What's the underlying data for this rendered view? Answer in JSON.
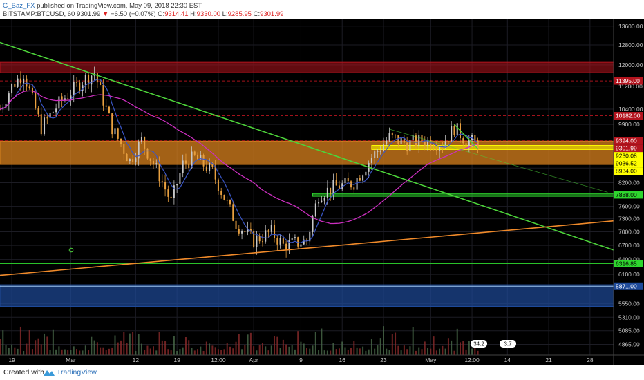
{
  "header": {
    "author": "G_Baz_FX",
    "published": " published on TradingView.com, May 09, 2018 22:30 EST",
    "symbol": "BITSTAMP:BTCUSD, 60",
    "last": "9301.99",
    "change_arrow": "▼",
    "change": "−6.50 (−0.07%)",
    "o_label": "O:",
    "o": "9314.41",
    "h_label": "H:",
    "h": "9330.00",
    "l_label": "L:",
    "l": "9285.95",
    "c_label": "C:",
    "c": "9301.99"
  },
  "footer": {
    "created_with": "Created with",
    "brand": "TradingView"
  },
  "colors": {
    "background": "#000000",
    "grid": "#1c1c24",
    "axis_text": "#c8c8c8",
    "candle_up": "#c9c9c9",
    "candle_down": "#e8a040",
    "ma_fast": "#3a56c6",
    "ma_slow": "#cc2fc0",
    "trend_green": "#4dd43a",
    "trend_orange": "#f08a2a",
    "zone_red": "#b4141e",
    "zone_orange": "#d9821e",
    "zone_yellow": "#ffff00",
    "zone_green": "#2ed62e",
    "zone_blue": "#1e4a9a"
  },
  "chart_data": {
    "type": "candlestick",
    "title": "",
    "y_scale": "log",
    "ylim": [
      4700,
      13900
    ],
    "y_ticks": [
      "13600.00",
      "12800.00",
      "12000.00",
      "11200.00",
      "10400.00",
      "9900.00",
      "8600.00",
      "8200.00",
      "7600.00",
      "7300.00",
      "7000.00",
      "6700.00",
      "6400.00",
      "6100.00",
      "5550.00",
      "5310.00",
      "5085.00",
      "4865.00"
    ],
    "x_ticks": [
      "19",
      "Mar",
      "12",
      "19",
      "12:00",
      "Apr",
      "9",
      "16",
      "23",
      "May",
      "12:00",
      "14",
      "21",
      "28"
    ],
    "price_path": [
      {
        "date": "Feb 17",
        "close": 10400
      },
      {
        "date": "Feb 19",
        "close": 11200
      },
      {
        "date": "Feb 21",
        "close": 11700
      },
      {
        "date": "Feb 24",
        "close": 9800
      },
      {
        "date": "Feb 27",
        "close": 10600
      },
      {
        "date": "Mar 03",
        "close": 11400
      },
      {
        "date": "Mar 05",
        "close": 11700
      },
      {
        "date": "Mar 08",
        "close": 9800
      },
      {
        "date": "Mar 11",
        "close": 8800
      },
      {
        "date": "Mar 13",
        "close": 9400
      },
      {
        "date": "Mar 16",
        "close": 8400
      },
      {
        "date": "Mar 18",
        "close": 7700
      },
      {
        "date": "Mar 20",
        "close": 8700
      },
      {
        "date": "Mar 22",
        "close": 8900
      },
      {
        "date": "Mar 25",
        "close": 8500
      },
      {
        "date": "Mar 29",
        "close": 7200
      },
      {
        "date": "Apr 01",
        "close": 6800
      },
      {
        "date": "Apr 04",
        "close": 7000
      },
      {
        "date": "Apr 06",
        "close": 6700
      },
      {
        "date": "Apr 10",
        "close": 6800
      },
      {
        "date": "Apr 12",
        "close": 7900
      },
      {
        "date": "Apr 15",
        "close": 8100
      },
      {
        "date": "Apr 18",
        "close": 8200
      },
      {
        "date": "Apr 21",
        "close": 8900
      },
      {
        "date": "Apr 24",
        "close": 9500
      },
      {
        "date": "Apr 27",
        "close": 9300
      },
      {
        "date": "Apr 30",
        "close": 9400
      },
      {
        "date": "May 03",
        "close": 9300
      },
      {
        "date": "May 05",
        "close": 9800
      },
      {
        "date": "May 07",
        "close": 9400
      },
      {
        "date": "May 09",
        "close": 9302
      }
    ],
    "price_labels": [
      {
        "label": "11395.00",
        "color": "#b4141e"
      },
      {
        "label": "10182.00",
        "color": "#b4141e"
      },
      {
        "label": "9394.00",
        "color": "#b4141e"
      },
      {
        "label": "9301.99",
        "color": "#b4141e"
      },
      {
        "label": "9230.08",
        "color": "#ffff00"
      },
      {
        "label": "9036.52",
        "color": "#ffff00"
      },
      {
        "label": "8934.00",
        "color": "#ffff00"
      },
      {
        "label": "7888.00",
        "color": "#2ed62e"
      },
      {
        "label": "6316.85",
        "color": "#2ed62e"
      },
      {
        "label": "5871.00",
        "color": "#1e4a9a"
      }
    ],
    "drawn_levels": [
      {
        "kind": "zone",
        "from": 11700,
        "to": 12100,
        "color": "#b4141e"
      },
      {
        "kind": "zone",
        "from": 8700,
        "to": 9380,
        "color": "#d9821e"
      },
      {
        "kind": "zone",
        "from": 9130,
        "to": 9250,
        "color": "#ffff00"
      },
      {
        "kind": "zone",
        "from": 7850,
        "to": 7920,
        "color": "#2ed62e"
      },
      {
        "kind": "zone",
        "from": 5500,
        "to": 5900,
        "color": "#1e4a9a"
      },
      {
        "kind": "line",
        "value": 11395,
        "color": "#b4141e"
      },
      {
        "kind": "line",
        "value": 10182,
        "color": "#b4141e"
      },
      {
        "kind": "line",
        "value": 9394,
        "color": "#b4141e"
      },
      {
        "kind": "line",
        "value": 6316.85,
        "color": "#2ed62e"
      },
      {
        "kind": "line",
        "value": 5871,
        "color": "#aad4ff"
      }
    ],
    "trendlines": [
      {
        "color": "#4dd43a",
        "from": {
          "date": "Feb 17",
          "price": 12900
        },
        "to": {
          "date": "Jun 01",
          "price": 6600
        }
      },
      {
        "color": "#f08a2a",
        "from": {
          "date": "Feb 17",
          "price": 6080
        },
        "to": {
          "date": "Jun 01",
          "price": 7250
        }
      }
    ],
    "volume_badges": [
      "34.2",
      "3.7"
    ]
  }
}
